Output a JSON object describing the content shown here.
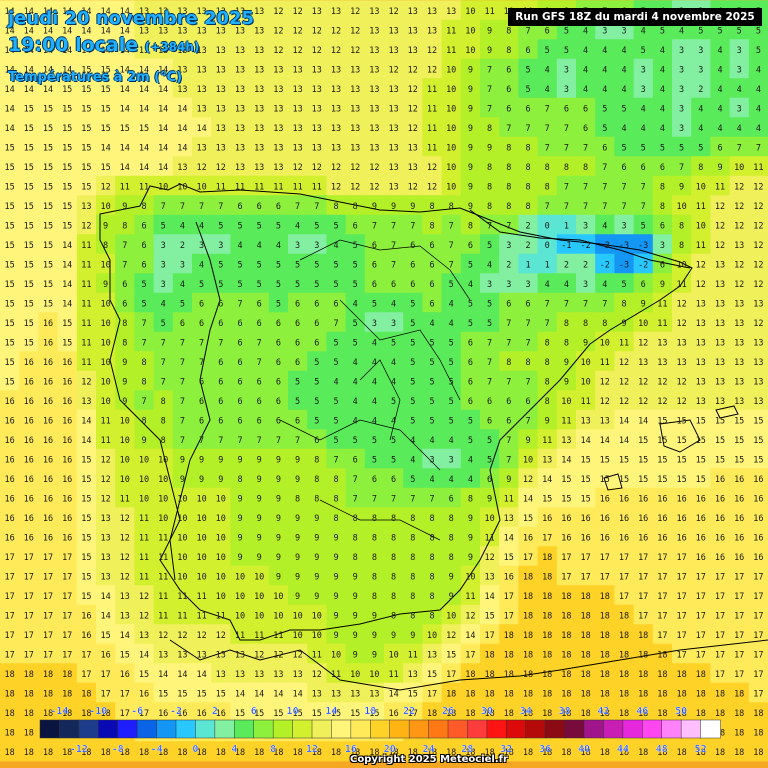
{
  "header": {
    "date": "jeudi 20 novembre 2025",
    "time": "19:00 locale",
    "lead": "(+384h)",
    "variable": "Températures à 2m (°C)",
    "run": "Run GFS 18Z du mardi 4 novembre 2025"
  },
  "footer": {
    "copyright": "Copyright 2025 Meteociel.fr"
  },
  "legend": {
    "top_labels": [
      "-14",
      "-10",
      "-6",
      "-2",
      "2",
      "6",
      "10",
      "14",
      "18",
      "22",
      "26",
      "30",
      "34",
      "38",
      "42",
      "46",
      "50"
    ],
    "bottom_labels": [
      "-12",
      "-8",
      "-4",
      "0",
      "4",
      "8",
      "12",
      "16",
      "20",
      "24",
      "28",
      "32",
      "36",
      "40",
      "44",
      "48",
      "52"
    ],
    "colors": [
      "#0a1440",
      "#14285a",
      "#1e3c8c",
      "#0a0ab4",
      "#1e1eff",
      "#0a64e6",
      "#1496f5",
      "#28c8ff",
      "#5ae6d2",
      "#82f0a0",
      "#5aeb5a",
      "#8cf03c",
      "#b4f028",
      "#d2f02d",
      "#f0f05a",
      "#fff57a",
      "#ffeb5a",
      "#ffd228",
      "#ffb414",
      "#ff9614",
      "#ff7814",
      "#ff5a28",
      "#ff3c3c",
      "#ff1414",
      "#dc0a0a",
      "#b40a0a",
      "#8c0a14",
      "#780a3c",
      "#a0148c",
      "#c81eb4",
      "#e628dc",
      "#ff46f0",
      "#ff82fa",
      "#ffbefc",
      "#ffffff"
    ]
  },
  "grid_rows": [
    "14 14 14 14 14 14 14 13 13 13 13 13 13 13 12 12 13 13 12 13 12 13 13 13 10 11 10 10 9 8 7 7 6 5 4 3 3 4 5 5",
    "14 14 14 14 14 14 14 13 13 13 13 13 13 13 12 12 12 12 12 13 13 13 13 11 10 9 8 7 6 5 4 3 3 4 5 4 5 5 5 5",
    "14 14 14 14 14 14 14 13 13 13 13 13 13 13 12 12 12 12 12 13 13 13 12 11 10 9 8 6 5 5 4 4 4 5 4 3 3 4 3 5",
    "14 14 14 14 15 15 14 14 14 13 13 13 13 13 13 13 13 13 13 13 12 12 12 10 9 7 6 5 4 3 4 4 4 3 4 3 3 4 3 4",
    "14 14 14 15 15 15 14 14 14 13 13 13 13 13 13 13 13 13 13 13 13 12 11 10 9 7 6 5 4 3 4 4 4 3 4 3 2 4 4 4",
    "14 15 15 15 15 15 14 14 14 14 13 13 13 13 13 13 13 13 13 13 13 12 11 10 9 7 6 6 7 6 6 5 5 4 4 3 4 4 3 4",
    "14 15 15 15 15 15 15 15 14 14 14 13 13 13 13 13 13 13 13 13 13 12 11 10 9 8 7 7 7 7 6 5 4 4 4 3 4 4 4 4",
    "15 15 15 15 15 14 14 14 14 14 13 13 13 13 13 13 13 13 13 13 13 13 11 10 9 9 8 8 7 7 7 6 5 5 5 5 5 6 7 7",
    "15 15 15 15 15 15 14 14 14 13 12 12 13 13 13 12 12 12 12 12 13 13 12 10 9 8 8 8 8 8 8 7 6 6 6 7 8 9 10 11",
    "15 15 15 15 15 12 11 11 10 10 10 11 11 11 11 11 11 12 12 12 13 12 12 10 9 8 8 8 8 7 7 7 7 7 8 9 10 11 12 12",
    "15 15 15 15 13 10 9 8 7 7 7 7 6 6 6 7 7 8 8 9 9 9 8 8 9 8 8 8 7 7 7 7 7 7 8 10 11 12 12 12",
    "15 15 15 15 12 9 8 6 5 4 4 5 5 5 5 4 5 5 6 7 7 7 8 7 8 7 7 2 0 1 3 4 3 5 6 8 10 12 12 12",
    "15 15 15 14 11 8 7 6 3 2 3 3 4 4 4 3 3 4 5 6 7 6 6 7 6 5 3 2 0 -1 -2 -3 -3 -3 3 8 11 12 13 12",
    "15 15 15 14 11 10 7 6 3 3 4 5 5 5 5 5 5 5 5 6 7 6 6 7 5 4 2 1 1 2 2 -2 -3 -2 6 10 12 13 12 12",
    "15 15 15 14 11 9 6 5 3 4 5 5 5 5 5 5 5 5 5 6 6 6 6 5 4 3 3 3 4 4 3 4 5 6 9 11 12 13 12 12",
    "15 15 15 14 11 10 6 5 4 5 6 6 7 6 5 6 6 6 4 5 4 5 6 4 5 5 6 6 7 7 7 7 8 9 11 12 13 13 13 13",
    "15 15 16 15 11 10 8 7 5 6 6 6 6 6 6 6 6 7 5 3 3 5 4 4 5 5 7 7 7 8 8 8 9 10 11 12 13 13 13 12",
    "15 15 16 15 11 10 8 7 7 7 7 7 6 7 6 6 6 5 5 4 5 5 5 5 6 7 7 7 8 8 9 10 11 12 13 13 13 13 13 13",
    "15 16 16 16 11 10 9 8 7 7 7 6 6 7 6 6 5 5 4 4 4 5 5 5 6 7 8 8 8 9 10 11 12 13 13 13 13 13 13 13",
    "15 16 16 16 12 10 9 8 7 7 6 6 6 6 6 5 5 4 4 4 4 5 5 5 6 7 7 7 8 9 10 12 12 12 12 12 13 13 13 13",
    "16 16 16 16 13 10 9 7 8 7 6 6 6 6 6 5 5 5 4 4 5 5 5 5 6 6 6 6 8 10 11 12 12 12 12 12 13 13 13 13",
    "16 16 16 16 14 11 10 8 8 7 6 6 6 6 6 6 5 5 4 4 4 5 5 5 5 6 6 7 9 11 13 13 14 14 15 15 15 15 15 15",
    "16 16 16 16 14 11 10 9 8 7 7 7 7 7 7 7 6 5 5 5 5 4 4 4 5 5 7 9 11 13 14 14 14 15 15 15 15 15 15 15",
    "16 16 16 16 15 12 10 10 10 9 9 9 9 9 9 9 8 7 6 5 5 4 3 3 4 5 7 10 13 14 15 15 15 15 15 15 15 15 15 15",
    "16 16 16 16 15 12 10 10 10 9 9 9 8 9 9 9 8 8 7 6 6 5 4 4 4 6 9 12 14 15 15 15 15 15 15 15 15 16 16 16",
    "16 16 16 16 15 12 11 10 10 10 10 10 9 9 9 8 8 8 7 7 7 7 7 6 8 9 11 14 15 15 15 16 16 16 16 16 16 16 16 16",
    "16 16 16 16 15 13 12 11 10 10 10 10 9 9 9 9 9 8 8 8 8 8 8 8 9 10 13 15 16 16 16 16 16 16 16 16 16 16 16 16",
    "16 16 16 16 15 13 12 11 11 10 10 10 9 9 9 9 9 9 8 8 8 8 8 8 9 11 14 16 17 16 16 16 16 16 16 16 16 16 16 16",
    "17 17 17 17 15 13 12 11 11 10 10 10 9 9 9 9 9 9 8 8 8 8 8 8 9 12 15 17 18 17 17 17 17 17 17 17 16 16 16 16",
    "17 17 17 17 15 13 12 11 11 10 10 10 10 10 9 9 9 9 9 8 8 8 8 9 10 13 16 18 18 17 17 17 17 17 17 17 17 17 17 17",
    "17 17 17 17 15 14 13 12 11 11 11 10 10 10 10 9 9 9 9 8 8 8 8 9 11 14 17 18 18 18 18 18 17 17 17 17 17 17 17 17",
    "17 17 17 17 16 14 13 12 11 11 11 11 10 10 10 10 10 9 9 9 8 8 8 10 12 15 17 18 18 18 18 18 18 17 17 17 17 17 17 17",
    "17 17 17 17 16 15 14 13 12 12 12 12 11 11 11 10 10 9 9 9 9 9 10 12 14 17 18 18 18 18 18 18 18 18 17 17 17 17 17 17",
    "17 17 17 17 17 16 15 14 13 13 13 13 13 12 12 12 11 10 9 9 10 11 13 15 17 18 18 18 18 18 18 18 18 18 18 17 17 17 17 17",
    "18 18 18 18 17 17 16 15 14 14 14 13 13 13 13 13 12 11 10 10 11 13 15 17 18 18 18 18 18 18 18 18 18 18 18 18 18 17 17 17",
    "18 18 18 18 18 17 17 16 15 15 15 15 14 14 14 14 13 13 13 13 14 15 17 18 18 18 18 18 18 18 18 18 18 18 18 18 18 18 18 17",
    "18 18 18 18 18 18 17 17 16 16 16 16 15 15 15 15 15 15 15 15 16 17 18 18 18 18 18 18 18 18 18 18 18 18 18 18 18 18 18 18",
    "18 18 18 18 18 18 18 17 17 17 17 17 17 16 16 16 16 16 16 17 17 18 18 18 18 18 18 18 18 18 18 18 18 18 18 18 18 18 18 18",
    "18 18 18 18 18 18 18 18 18 18 18 18 18 18 18 18 18 18 18 18 18 18 18 18 18 18 18 18 18 18 18 18 18 18 18 18 18 18 18 18"
  ]
}
